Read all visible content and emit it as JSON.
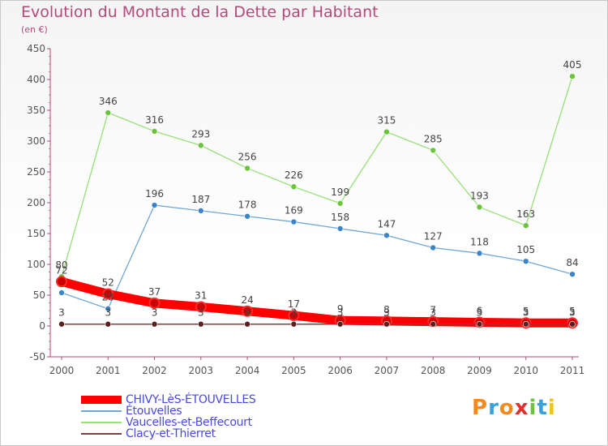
{
  "chart_data": {
    "type": "line",
    "title": "Evolution du Montant de la Dette par Habitant",
    "subtitle": "(en €)",
    "x": [
      "2000",
      "2001",
      "2002",
      "2003",
      "2004",
      "2005",
      "2006",
      "2007",
      "2008",
      "2009",
      "2010",
      "2011"
    ],
    "ylim": [
      -50,
      450
    ],
    "yticks": [
      -50,
      0,
      50,
      100,
      150,
      200,
      250,
      300,
      350,
      400,
      450
    ],
    "grid": false,
    "legend_position": "bottom-left",
    "series": [
      {
        "name": "CHIVY-LèS-ÉTOUVELLES",
        "color": "#ff0000",
        "marker_color": "#cc0000",
        "values": [
          72,
          52,
          37,
          31,
          24,
          17,
          9,
          8,
          7,
          6,
          5,
          5
        ],
        "labels": [
          "72",
          "52",
          "37",
          "31",
          "24",
          "17",
          "9",
          "8",
          "7",
          "6",
          "5",
          "5"
        ]
      },
      {
        "name": "Étouvelles",
        "color": "#6fa8d6",
        "marker_color": "#3a85c9",
        "values": [
          54,
          28,
          196,
          187,
          178,
          169,
          158,
          147,
          127,
          118,
          105,
          84
        ],
        "labels": [
          "",
          "28",
          "196",
          "187",
          "178",
          "169",
          "158",
          "147",
          "127",
          "118",
          "105",
          "84"
        ]
      },
      {
        "name": "Vaucelles-et-Beffecourt",
        "color": "#99e07a",
        "marker_color": "#6cc43c",
        "values": [
          80,
          346,
          316,
          293,
          256,
          226,
          199,
          315,
          285,
          193,
          163,
          405
        ],
        "labels": [
          "80",
          "346",
          "316",
          "293",
          "256",
          "226",
          "199",
          "315",
          "285",
          "193",
          "163",
          "405"
        ]
      },
      {
        "name": "Clacy-et-Thierret",
        "color": "#8a3a3a",
        "marker_color": "#5a1f1f",
        "values": [
          3,
          3,
          3,
          3,
          3,
          3,
          3,
          3,
          3,
          3,
          3,
          3
        ],
        "labels": [
          "3",
          "3",
          "3",
          "3",
          "3",
          "3",
          "3",
          "3",
          "3",
          "3",
          "3",
          "3"
        ]
      }
    ]
  },
  "logo": {
    "text": "Proxiti",
    "letters": [
      "P",
      "r",
      "o",
      "x",
      "i",
      "t",
      "i"
    ],
    "colors": [
      "#f28a1e",
      "#3aa0dc",
      "#f28a1e",
      "#e0312e",
      "#6cc43c",
      "#3aa0dc",
      "#f2c21e"
    ]
  }
}
